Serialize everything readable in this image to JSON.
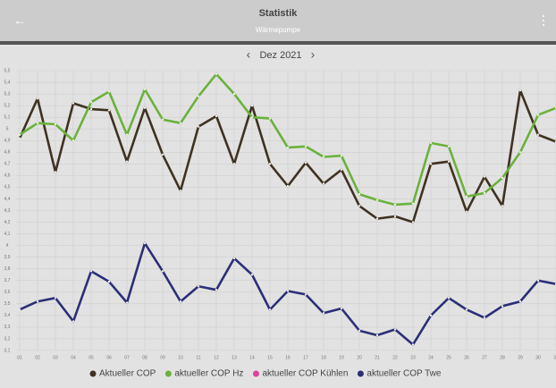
{
  "header": {
    "title": "Statistik",
    "subtitle": "Wärmepumpe"
  },
  "nav": {
    "month": "Dez 2021"
  },
  "chart_data": {
    "type": "line",
    "categories": [
      "01",
      "02",
      "03",
      "04",
      "05",
      "06",
      "07",
      "08",
      "09",
      "10",
      "11",
      "12",
      "13",
      "14",
      "15",
      "16",
      "17",
      "18",
      "19",
      "20",
      "21",
      "22",
      "23",
      "24",
      "25",
      "26",
      "27",
      "28",
      "29",
      "30",
      "31"
    ],
    "series": [
      {
        "name": "Aktueller COP",
        "color": "#3e3222",
        "values": [
          4.92,
          5.26,
          4.63,
          5.22,
          5.17,
          5.16,
          4.72,
          5.18,
          4.78,
          4.47,
          5.02,
          5.11,
          4.7,
          5.2,
          4.7,
          4.51,
          4.71,
          4.53,
          4.65,
          4.34,
          4.23,
          4.25,
          4.2,
          4.7,
          4.72,
          4.29,
          4.59,
          4.34,
          5.33,
          4.95,
          4.89
        ]
      },
      {
        "name": "aktueller COP Hz",
        "color": "#6ab23c",
        "values": [
          4.95,
          5.05,
          5.04,
          4.9,
          5.23,
          5.32,
          4.95,
          5.34,
          5.08,
          5.05,
          5.28,
          5.47,
          5.3,
          5.1,
          5.09,
          4.84,
          4.85,
          4.76,
          4.77,
          4.44,
          4.39,
          4.35,
          4.36,
          4.88,
          4.85,
          4.42,
          4.45,
          4.58,
          4.8,
          5.12,
          5.18
        ]
      },
      {
        "name": "aktueller COP Kühlen",
        "color": "#e0409a",
        "values": [
          null,
          null,
          null,
          null,
          null,
          null,
          null,
          null,
          null,
          null,
          null,
          null,
          null,
          null,
          null,
          null,
          null,
          null,
          null,
          null,
          null,
          null,
          null,
          null,
          null,
          null,
          null,
          null,
          null,
          null,
          null
        ]
      },
      {
        "name": "aktueller COP Twe",
        "color": "#2b2f78",
        "values": [
          3.45,
          3.52,
          3.55,
          3.35,
          3.78,
          3.69,
          3.51,
          4.02,
          3.78,
          3.52,
          3.65,
          3.62,
          3.89,
          3.75,
          3.45,
          3.61,
          3.58,
          3.42,
          3.46,
          3.27,
          3.23,
          3.28,
          3.15,
          3.4,
          3.55,
          3.45,
          3.38,
          3.48,
          3.52,
          3.7,
          3.67
        ]
      }
    ],
    "ylim": [
      3.1,
      5.5
    ],
    "yticks": [
      {
        "value": 3.1,
        "label": "3,1"
      },
      {
        "value": 3.2,
        "label": "3,2"
      },
      {
        "value": 3.3,
        "label": "3,3"
      },
      {
        "value": 3.4,
        "label": "3,4"
      },
      {
        "value": 3.5,
        "label": "3,5"
      },
      {
        "value": 3.6,
        "label": "3,6"
      },
      {
        "value": 3.7,
        "label": "3,7"
      },
      {
        "value": 3.8,
        "label": "3,8"
      },
      {
        "value": 3.9,
        "label": "3,9"
      },
      4,
      {
        "value": 4.1,
        "label": "4,1"
      },
      {
        "value": 4.2,
        "label": "4,2"
      },
      {
        "value": 4.3,
        "label": "4,3"
      },
      {
        "value": 4.4,
        "label": "4,4"
      },
      {
        "value": 4.5,
        "label": "4,5"
      },
      {
        "value": 4.6,
        "label": "4,6"
      },
      {
        "value": 4.7,
        "label": "4,7"
      },
      {
        "value": 4.8,
        "label": "4,8"
      },
      {
        "value": 4.9,
        "label": "4,9"
      },
      5,
      {
        "value": 5.1,
        "label": "5,1"
      },
      {
        "value": 5.2,
        "label": "5,2"
      },
      {
        "value": 5.3,
        "label": "5,3"
      },
      {
        "value": 5.4,
        "label": "5,4"
      },
      {
        "value": 5.5,
        "label": "5,5"
      }
    ],
    "grid": true
  }
}
